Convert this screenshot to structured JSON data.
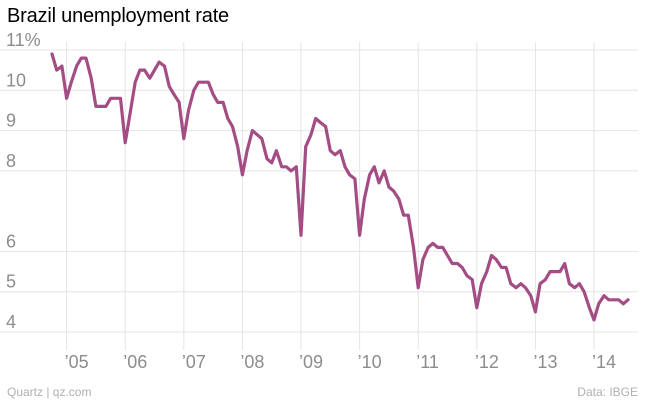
{
  "title": "Brazil unemployment rate",
  "source": "Quartz | qz.com",
  "credit": "Data: IBGE",
  "colors": {
    "line": "#a44d85",
    "grid": "#e4e4e4",
    "tick": "#8d8d8d"
  },
  "chart_data": {
    "type": "line",
    "title": "Brazil unemployment rate",
    "ylim": [
      4,
      11
    ],
    "xlim": [
      2004.58,
      2014.75
    ],
    "y_ticks": [
      4,
      5,
      6,
      8,
      9,
      10,
      11
    ],
    "y_tick_labels": [
      "4",
      "5",
      "6",
      "8",
      "9",
      "10",
      "11%"
    ],
    "x_ticks": [
      2005,
      2006,
      2007,
      2008,
      2009,
      2010,
      2011,
      2012,
      2013,
      2014
    ],
    "x_tick_labels": [
      "’05",
      "’06",
      "’07",
      "’08",
      "’09",
      "’10",
      "’11",
      "’12",
      "’13",
      "’14"
    ],
    "grid": true,
    "series": [
      {
        "x": [
          2004.75,
          2004.83,
          2004.92,
          2005.0,
          2005.08,
          2005.17,
          2005.25,
          2005.33,
          2005.42,
          2005.5,
          2005.58,
          2005.67,
          2005.75,
          2005.83,
          2005.92,
          2006.0,
          2006.08,
          2006.17,
          2006.25,
          2006.33,
          2006.42,
          2006.5,
          2006.58,
          2006.67,
          2006.75,
          2006.83,
          2006.92,
          2007.0,
          2007.08,
          2007.17,
          2007.25,
          2007.33,
          2007.42,
          2007.5,
          2007.58,
          2007.67,
          2007.75,
          2007.83,
          2007.92,
          2008.0,
          2008.08,
          2008.17,
          2008.25,
          2008.33,
          2008.42,
          2008.5,
          2008.58,
          2008.67,
          2008.75,
          2008.83,
          2008.92,
          2009.0,
          2009.08,
          2009.17,
          2009.25,
          2009.33,
          2009.42,
          2009.5,
          2009.58,
          2009.67,
          2009.75,
          2009.83,
          2009.92,
          2010.0,
          2010.08,
          2010.17,
          2010.25,
          2010.33,
          2010.42,
          2010.5,
          2010.58,
          2010.67,
          2010.75,
          2010.83,
          2010.92,
          2011.0,
          2011.08,
          2011.17,
          2011.25,
          2011.33,
          2011.42,
          2011.5,
          2011.58,
          2011.67,
          2011.75,
          2011.83,
          2011.92,
          2012.0,
          2012.08,
          2012.17,
          2012.25,
          2012.33,
          2012.42,
          2012.5,
          2012.58,
          2012.67,
          2012.75,
          2012.83,
          2012.92,
          2013.0,
          2013.08,
          2013.17,
          2013.25,
          2013.33,
          2013.42,
          2013.5,
          2013.58,
          2013.67,
          2013.75,
          2013.83,
          2013.92,
          2014.0,
          2014.08,
          2014.17,
          2014.25,
          2014.33,
          2014.42,
          2014.5,
          2014.58
        ],
        "values": [
          10.9,
          10.5,
          10.6,
          9.8,
          10.2,
          10.6,
          10.8,
          10.8,
          10.3,
          9.6,
          9.6,
          9.6,
          9.8,
          9.8,
          9.8,
          8.7,
          9.4,
          10.2,
          10.5,
          10.5,
          10.3,
          10.5,
          10.7,
          10.6,
          10.1,
          9.9,
          9.7,
          8.8,
          9.5,
          10.0,
          10.2,
          10.2,
          10.2,
          9.9,
          9.7,
          9.7,
          9.3,
          9.1,
          8.6,
          7.9,
          8.5,
          9.0,
          8.9,
          8.8,
          8.3,
          8.2,
          8.5,
          8.1,
          8.1,
          8.0,
          8.1,
          6.4,
          8.6,
          8.9,
          9.3,
          9.2,
          9.1,
          8.5,
          8.4,
          8.5,
          8.1,
          7.9,
          7.8,
          6.4,
          7.3,
          7.9,
          8.1,
          7.7,
          8.0,
          7.6,
          7.5,
          7.3,
          6.9,
          6.9,
          6.1,
          5.1,
          5.8,
          6.1,
          6.2,
          6.1,
          6.1,
          5.9,
          5.7,
          5.7,
          5.6,
          5.4,
          5.3,
          4.6,
          5.2,
          5.5,
          5.9,
          5.8,
          5.6,
          5.6,
          5.2,
          5.1,
          5.2,
          5.1,
          4.9,
          4.5,
          5.2,
          5.3,
          5.5,
          5.5,
          5.5,
          5.7,
          5.2,
          5.1,
          5.2,
          5.0,
          4.6,
          4.3,
          4.7,
          4.9,
          4.8,
          4.8,
          4.8,
          4.7,
          4.8
        ]
      }
    ]
  }
}
